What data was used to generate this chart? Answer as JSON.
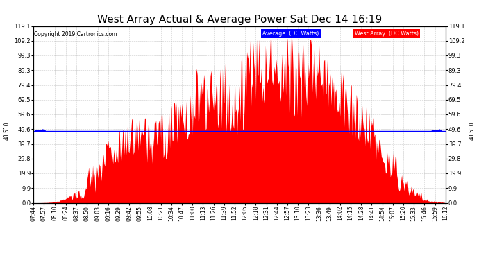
{
  "title": "West Array Actual & Average Power Sat Dec 14 16:19",
  "copyright": "Copyright 2019 Cartronics.com",
  "legend_avg": "Average  (DC Watts)",
  "legend_west": "West Array  (DC Watts)",
  "avg_value": 48.51,
  "ylim_min": 0.0,
  "ylim_max": 119.1,
  "ytick_values": [
    0.0,
    9.9,
    19.9,
    29.8,
    39.7,
    49.6,
    59.6,
    69.5,
    79.4,
    89.3,
    99.3,
    109.2,
    119.1
  ],
  "fill_color": "#FF0000",
  "avg_line_color": "#0000FF",
  "bg_color": "#FFFFFF",
  "grid_color": "#BBBBBB",
  "title_fontsize": 11,
  "tick_fontsize": 6,
  "x_tick_labels": [
    "07:44",
    "07:57",
    "08:10",
    "08:24",
    "08:37",
    "08:50",
    "09:03",
    "09:16",
    "09:29",
    "09:42",
    "09:55",
    "10:08",
    "10:21",
    "10:34",
    "10:47",
    "11:00",
    "11:13",
    "11:26",
    "11:39",
    "11:52",
    "12:05",
    "12:18",
    "12:31",
    "12:44",
    "12:57",
    "13:10",
    "13:23",
    "13:36",
    "13:49",
    "14:02",
    "14:15",
    "14:28",
    "14:41",
    "14:54",
    "15:07",
    "15:20",
    "15:33",
    "15:46",
    "15:59",
    "16:12"
  ],
  "avg_label": "48.510"
}
